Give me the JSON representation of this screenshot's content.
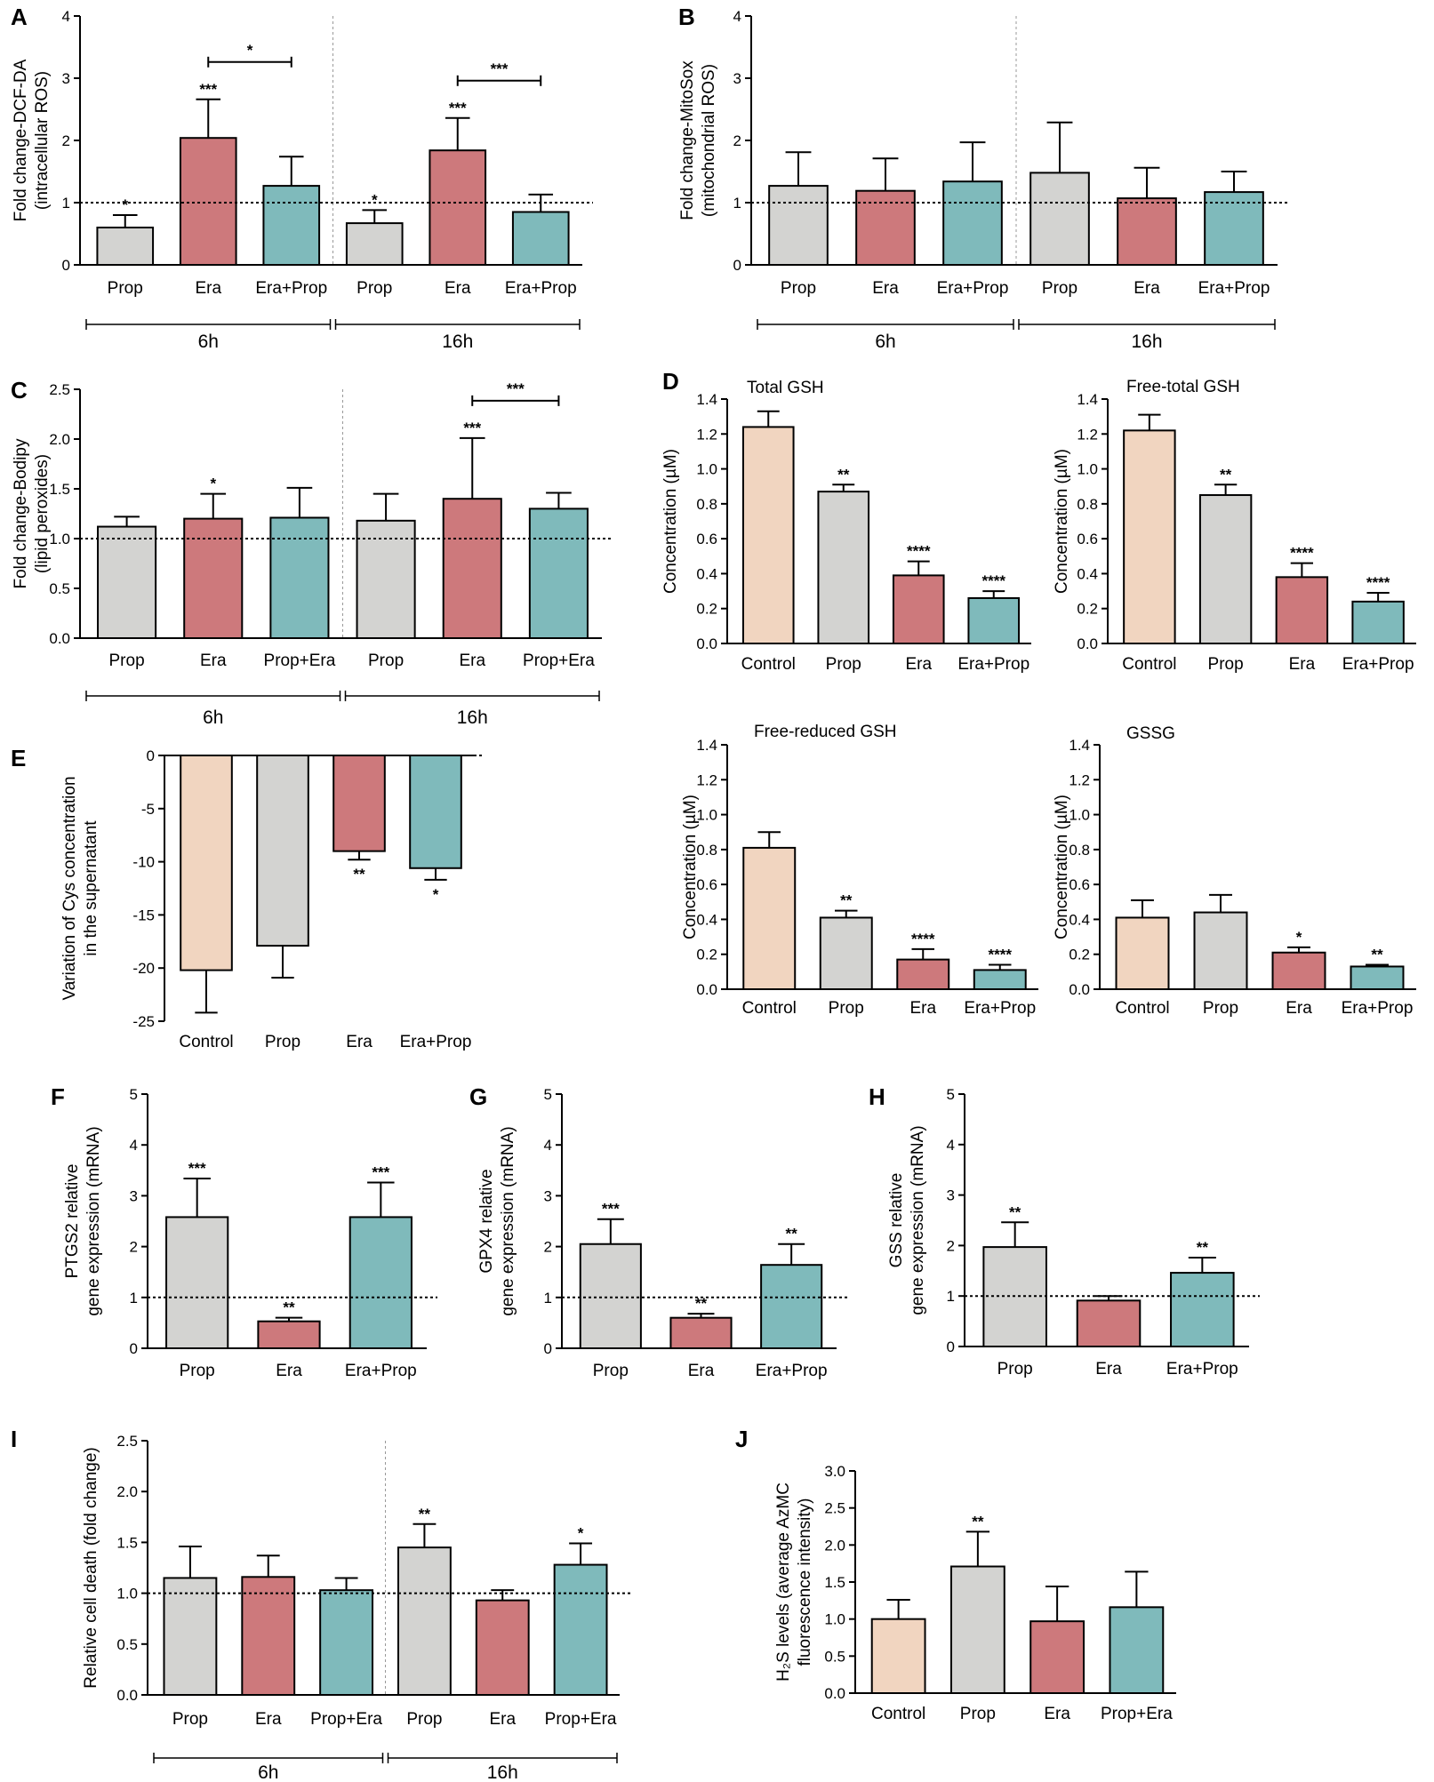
{
  "colors": {
    "Control": "#f1d5c0",
    "Prop": "#d3d3d1",
    "Era": "#cd797c",
    "Era+Prop": "#7fbabb",
    "Prop+Era": "#7fbabb"
  },
  "chart_data": [
    {
      "id": "A",
      "type": "bar",
      "panel_label": "A",
      "ylabel": [
        "Fold change-DCF-DA",
        "(intracellular ROS)"
      ],
      "ylim": [
        0,
        4
      ],
      "yticks": [
        "0",
        "1",
        "2",
        "3",
        "4"
      ],
      "reference_line": 1,
      "categories": [
        "Prop",
        "Era",
        "Era+Prop",
        "Prop",
        "Era",
        "Era+Prop"
      ],
      "values": [
        0.6,
        2.04,
        1.27,
        0.67,
        1.84,
        0.85
      ],
      "errors": [
        0.2,
        0.62,
        0.47,
        0.21,
        0.52,
        0.28
      ],
      "significance": [
        "*",
        "***",
        "",
        "*",
        "***",
        ""
      ],
      "brackets": [
        {
          "from": 1,
          "to": 2,
          "label": "*"
        },
        {
          "from": 4,
          "to": 5,
          "label": "***"
        }
      ],
      "time_groups": [
        {
          "label": "6h",
          "from": 0,
          "to": 2
        },
        {
          "label": "16h",
          "from": 3,
          "to": 5
        }
      ]
    },
    {
      "id": "B",
      "type": "bar",
      "panel_label": "B",
      "ylabel": [
        "Fold change-MitoSox",
        "(mitochondrial ROS)"
      ],
      "ylim": [
        0,
        4
      ],
      "yticks": [
        "0",
        "1",
        "2",
        "3",
        "4"
      ],
      "reference_line": 1,
      "categories": [
        "Prop",
        "Era",
        "Era+Prop",
        "Prop",
        "Era",
        "Era+Prop"
      ],
      "values": [
        1.27,
        1.19,
        1.34,
        1.48,
        1.07,
        1.17
      ],
      "errors": [
        0.54,
        0.52,
        0.63,
        0.81,
        0.49,
        0.33
      ],
      "significance": [
        "",
        "",
        "",
        "",
        "",
        ""
      ],
      "brackets": [],
      "time_groups": [
        {
          "label": "6h",
          "from": 0,
          "to": 2
        },
        {
          "label": "16h",
          "from": 3,
          "to": 5
        }
      ]
    },
    {
      "id": "C",
      "type": "bar",
      "panel_label": "C",
      "ylabel": [
        "Fold change-Bodipy",
        "(lipid peroxides)"
      ],
      "ylim": [
        0,
        2.5
      ],
      "yticks": [
        "0.0",
        "0.5",
        "1.0",
        "1.5",
        "2.0",
        "2.5"
      ],
      "reference_line": 1,
      "categories": [
        "Prop",
        "Era",
        "Prop+Era",
        "Prop",
        "Era",
        "Prop+Era"
      ],
      "values": [
        1.12,
        1.2,
        1.21,
        1.18,
        1.4,
        1.3
      ],
      "errors": [
        0.1,
        0.25,
        0.3,
        0.27,
        0.61,
        0.16
      ],
      "significance": [
        "",
        "*",
        "",
        "",
        "***",
        ""
      ],
      "brackets": [
        {
          "from": 4,
          "to": 5,
          "label": "***"
        }
      ],
      "time_groups": [
        {
          "label": "6h",
          "from": 0,
          "to": 2
        },
        {
          "label": "16h",
          "from": 3,
          "to": 5
        }
      ]
    },
    {
      "id": "D1",
      "type": "bar",
      "panel_label": "D",
      "title": "Total GSH",
      "ylabel": [
        "Concentration (µM)"
      ],
      "ylim": [
        0,
        1.4
      ],
      "yticks": [
        "0.0",
        "0.2",
        "0.4",
        "0.6",
        "0.8",
        "1.0",
        "1.2",
        "1.4"
      ],
      "categories": [
        "Control",
        "Prop",
        "Era",
        "Era+Prop"
      ],
      "values": [
        1.24,
        0.87,
        0.39,
        0.26
      ],
      "errors": [
        0.09,
        0.04,
        0.08,
        0.04
      ],
      "significance": [
        "",
        "**",
        "****",
        "****"
      ]
    },
    {
      "id": "D2",
      "type": "bar",
      "title": "Free-total GSH",
      "ylabel": [
        "Concentration (µM)"
      ],
      "ylim": [
        0,
        1.4
      ],
      "yticks": [
        "0.0",
        "0.2",
        "0.4",
        "0.6",
        "0.8",
        "1.0",
        "1.2",
        "1.4"
      ],
      "categories": [
        "Control",
        "Prop",
        "Era",
        "Era+Prop"
      ],
      "values": [
        1.22,
        0.85,
        0.38,
        0.24
      ],
      "errors": [
        0.09,
        0.06,
        0.08,
        0.05
      ],
      "significance": [
        "",
        "**",
        "****",
        "****"
      ]
    },
    {
      "id": "D3",
      "type": "bar",
      "title": "Free-reduced GSH",
      "ylabel": [
        "Concentration (µM)"
      ],
      "ylim": [
        0,
        1.4
      ],
      "yticks": [
        "0.0",
        "0.2",
        "0.4",
        "0.6",
        "0.8",
        "1.0",
        "1.2",
        "1.4"
      ],
      "categories": [
        "Control",
        "Prop",
        "Era",
        "Era+Prop"
      ],
      "values": [
        0.81,
        0.41,
        0.17,
        0.11
      ],
      "errors": [
        0.09,
        0.04,
        0.06,
        0.03
      ],
      "significance": [
        "",
        "**",
        "****",
        "****"
      ]
    },
    {
      "id": "D4",
      "type": "bar",
      "title": "GSSG",
      "ylabel": [
        "Concentration (µM)"
      ],
      "ylim": [
        0,
        1.4
      ],
      "yticks": [
        "0.0",
        "0.2",
        "0.4",
        "0.6",
        "0.8",
        "1.0",
        "1.2",
        "1.4"
      ],
      "categories": [
        "Control",
        "Prop",
        "Era",
        "Era+Prop"
      ],
      "values": [
        0.41,
        0.44,
        0.21,
        0.13
      ],
      "errors": [
        0.1,
        0.1,
        0.03,
        0.01
      ],
      "significance": [
        "",
        "",
        "*",
        "**"
      ]
    },
    {
      "id": "E",
      "type": "bar",
      "panel_label": "E",
      "ylabel": [
        "Variation of Cys concentration",
        "in the supernatant"
      ],
      "ylim": [
        -25,
        0
      ],
      "yticks": [
        "-25",
        "-20",
        "-15",
        "-10",
        "-5",
        "0"
      ],
      "reference_line": 0,
      "categories": [
        "Control",
        "Prop",
        "Era",
        "Era+Prop"
      ],
      "values": [
        -20.2,
        -17.9,
        -9.0,
        -10.6
      ],
      "errors": [
        4.0,
        3.0,
        0.8,
        1.1
      ],
      "significance": [
        "",
        "",
        "**",
        "*"
      ]
    },
    {
      "id": "F",
      "type": "bar",
      "panel_label": "F",
      "ylabel": [
        "PTGS2 relative",
        "gene expression (mRNA)"
      ],
      "ylim": [
        0,
        5
      ],
      "yticks": [
        "0",
        "1",
        "2",
        "3",
        "4",
        "5"
      ],
      "reference_line": 1,
      "categories": [
        "Prop",
        "Era",
        "Era+Prop"
      ],
      "values": [
        2.58,
        0.53,
        2.58
      ],
      "errors": [
        0.76,
        0.07,
        0.68
      ],
      "significance": [
        "***",
        "**",
        "***"
      ]
    },
    {
      "id": "G",
      "type": "bar",
      "panel_label": "G",
      "ylabel": [
        "GPX4 relative",
        "gene expression (mRNA)"
      ],
      "ylim": [
        0,
        5
      ],
      "yticks": [
        "0",
        "1",
        "2",
        "3",
        "4",
        "5"
      ],
      "reference_line": 1,
      "categories": [
        "Prop",
        "Era",
        "Era+Prop"
      ],
      "values": [
        2.05,
        0.6,
        1.64
      ],
      "errors": [
        0.49,
        0.08,
        0.41
      ],
      "significance": [
        "***",
        "**",
        "**"
      ]
    },
    {
      "id": "H",
      "type": "bar",
      "panel_label": "H",
      "ylabel": [
        "GSS relative",
        "gene expression (mRNA)"
      ],
      "ylim": [
        0,
        5
      ],
      "yticks": [
        "0",
        "1",
        "2",
        "3",
        "4",
        "5"
      ],
      "reference_line": 1,
      "categories": [
        "Prop",
        "Era",
        "Era+Prop"
      ],
      "values": [
        1.97,
        0.91,
        1.46
      ],
      "errors": [
        0.49,
        0.09,
        0.3
      ],
      "significance": [
        "**",
        "",
        "**"
      ]
    },
    {
      "id": "I",
      "type": "bar",
      "panel_label": "I",
      "ylabel": [
        "Relative cell death (fold change)"
      ],
      "ylim": [
        0,
        2.5
      ],
      "yticks": [
        "0.0",
        "0.5",
        "1.0",
        "1.5",
        "2.0",
        "2.5"
      ],
      "reference_line": 1,
      "categories": [
        "Prop",
        "Era",
        "Prop+Era",
        "Prop",
        "Era",
        "Prop+Era"
      ],
      "values": [
        1.15,
        1.16,
        1.03,
        1.45,
        0.93,
        1.28
      ],
      "errors": [
        0.31,
        0.21,
        0.12,
        0.23,
        0.1,
        0.21
      ],
      "significance": [
        "",
        "",
        "",
        "**",
        "",
        "*"
      ],
      "brackets": [],
      "time_groups": [
        {
          "label": "6h",
          "from": 0,
          "to": 2
        },
        {
          "label": "16h",
          "from": 3,
          "to": 5
        }
      ]
    },
    {
      "id": "J",
      "type": "bar",
      "panel_label": "J",
      "ylabel": [
        "H₂S levels (average AzMC",
        "fluorescence intensity)"
      ],
      "ylim": [
        0,
        3.0
      ],
      "yticks": [
        "0.0",
        "0.5",
        "1.0",
        "1.5",
        "2.0",
        "2.5",
        "3.0"
      ],
      "categories": [
        "Control",
        "Prop",
        "Era",
        "Prop+Era"
      ],
      "values": [
        1.0,
        1.71,
        0.97,
        1.16
      ],
      "errors": [
        0.26,
        0.47,
        0.47,
        0.48
      ],
      "significance": [
        "",
        "**",
        "",
        ""
      ]
    }
  ]
}
